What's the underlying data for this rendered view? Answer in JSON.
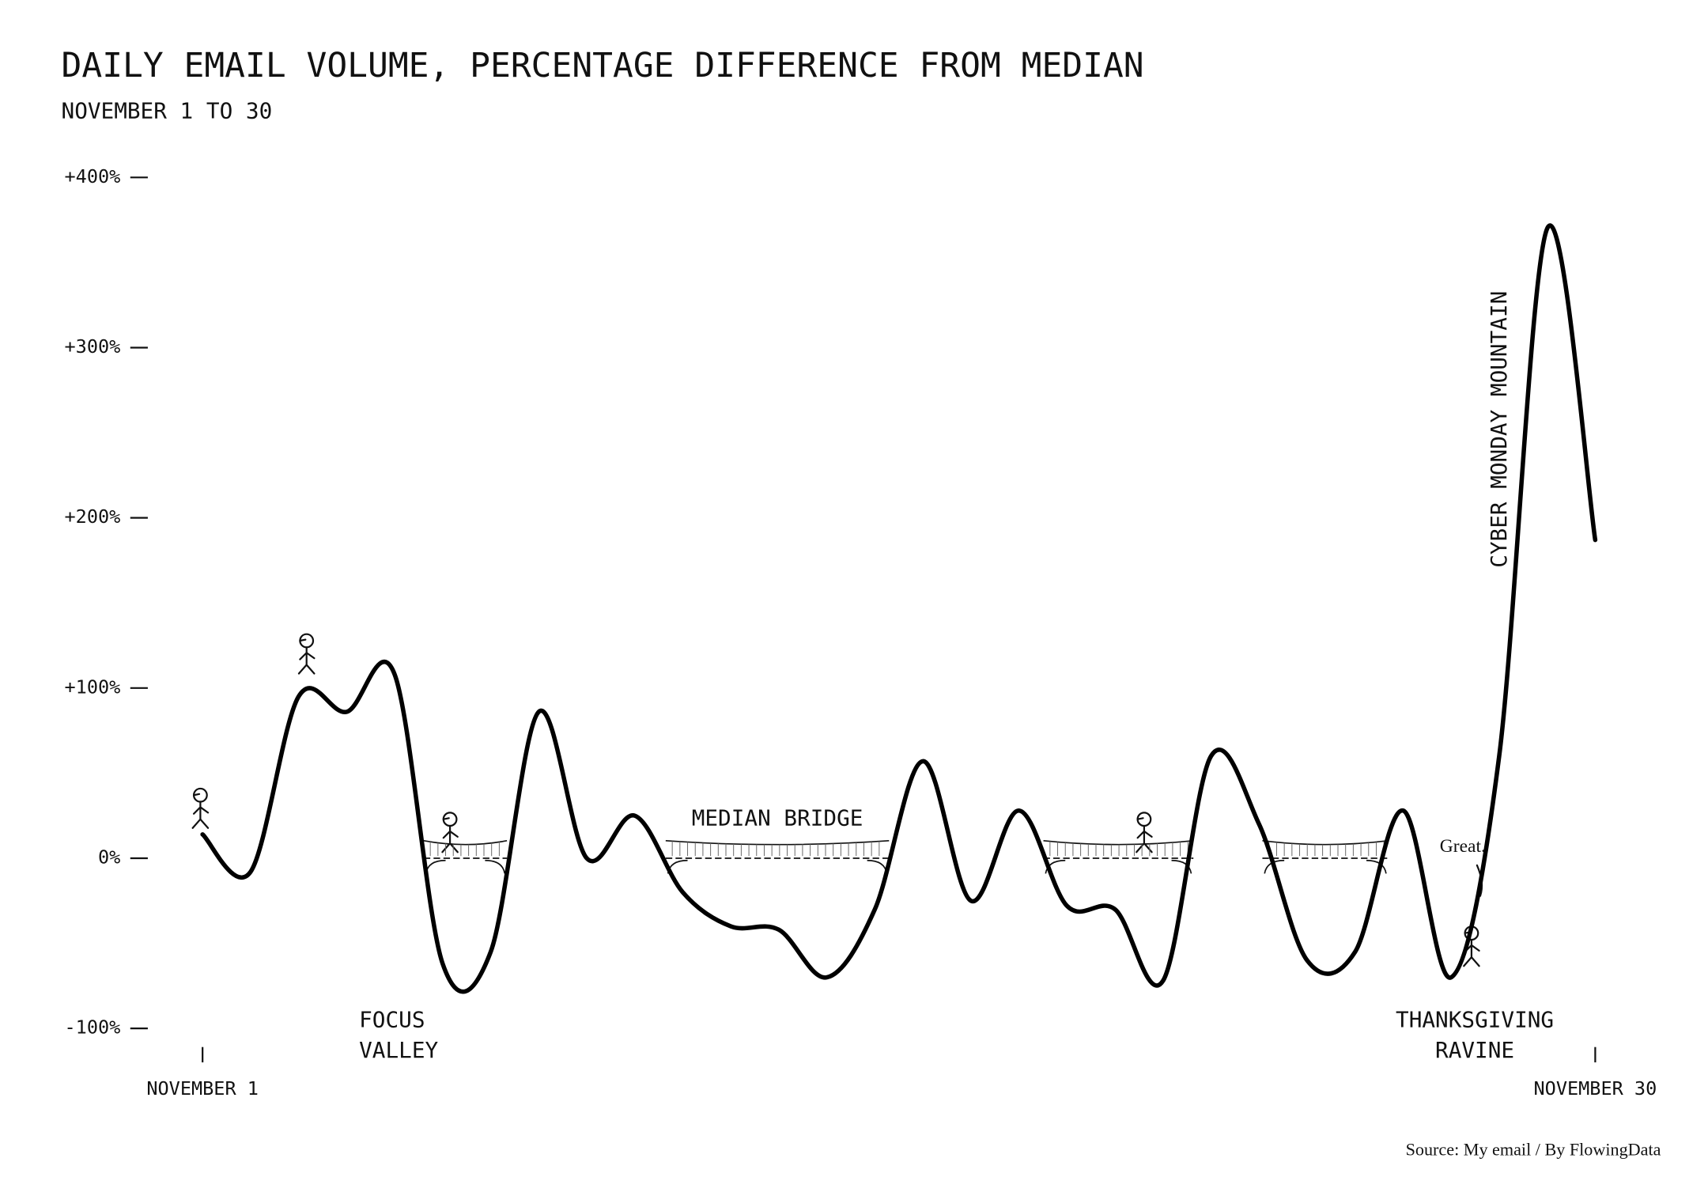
{
  "chart_data": {
    "type": "line",
    "title": "DAILY EMAIL VOLUME, PERCENTAGE DIFFERENCE FROM MEDIAN",
    "subtitle": "NOVEMBER 1 TO 30",
    "categories": [
      "NOVEMBER 1",
      null,
      null,
      null,
      null,
      null,
      null,
      null,
      null,
      null,
      null,
      null,
      null,
      null,
      null,
      null,
      null,
      null,
      null,
      null,
      null,
      null,
      null,
      null,
      null,
      null,
      null,
      null,
      null,
      "NOVEMBER 30"
    ],
    "series": [
      {
        "name": "Daily email volume",
        "color": "#000000",
        "values": [
          14,
          -8,
          95,
          86,
          108,
          -62,
          -55,
          86,
          0,
          25,
          -20,
          -40,
          -42,
          -70,
          -30,
          57,
          -25,
          28,
          -28,
          -30,
          -72,
          60,
          20,
          -60,
          -55,
          28,
          -70,
          60,
          370,
          187
        ]
      }
    ],
    "ylim": [
      -100,
      400
    ],
    "yticks": [
      {
        "value": -100,
        "label": "-100%"
      },
      {
        "value": 0,
        "label": "0%"
      },
      {
        "value": 100,
        "label": "+100%"
      },
      {
        "value": 200,
        "label": "+200%"
      },
      {
        "value": 300,
        "label": "+300%"
      },
      {
        "value": 400,
        "label": "+400%"
      }
    ],
    "annotations": [
      [
        "FOCUS",
        "VALLEY"
      ],
      [
        "MEDIAN BRIDGE"
      ],
      [
        "THANKSGIVING",
        "RAVINE"
      ],
      [
        "CYBER MONDAY MOUNTAIN"
      ],
      [
        "Great."
      ]
    ],
    "source": "Source: My email / By FlowingData"
  }
}
